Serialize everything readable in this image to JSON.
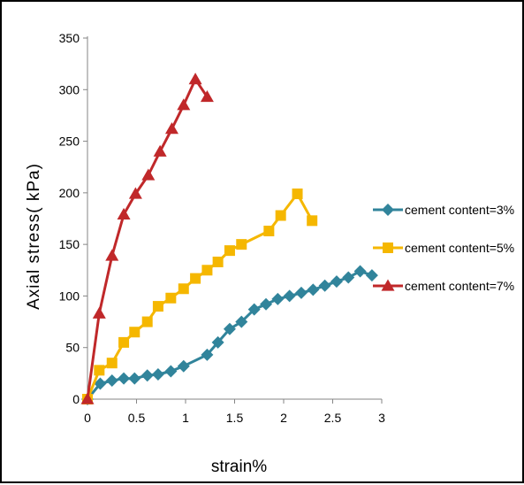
{
  "chart_data": {
    "type": "line",
    "xlabel": "strain%",
    "ylabel": "Axial stress( kPa)",
    "xlim": [
      0,
      3
    ],
    "ylim": [
      0,
      350
    ],
    "xticks": [
      "0",
      "0.5",
      "1",
      "1.5",
      "2",
      "2.5",
      "3"
    ],
    "yticks": [
      "0",
      "50",
      "100",
      "150",
      "200",
      "250",
      "300",
      "350"
    ],
    "grid": false,
    "legend_position": "right",
    "series": [
      {
        "name": "cement content=3%",
        "color": "#31849B",
        "marker": "diamond",
        "x": [
          0,
          0.13,
          0.25,
          0.37,
          0.48,
          0.61,
          0.72,
          0.85,
          0.98,
          1.22,
          1.33,
          1.45,
          1.57,
          1.7,
          1.82,
          1.94,
          2.06,
          2.18,
          2.3,
          2.42,
          2.54,
          2.66,
          2.78,
          2.9
        ],
        "y": [
          0,
          15,
          18,
          20,
          20,
          23,
          24,
          27,
          32,
          43,
          55,
          68,
          75,
          87,
          92,
          97,
          100,
          103,
          106,
          110,
          114,
          118,
          124,
          120
        ]
      },
      {
        "name": "cement content=5%",
        "color": "#F5B700",
        "marker": "square",
        "x": [
          0,
          0.12,
          0.25,
          0.37,
          0.48,
          0.61,
          0.72,
          0.85,
          0.98,
          1.1,
          1.22,
          1.33,
          1.45,
          1.57,
          1.85,
          1.97,
          2.14,
          2.29
        ],
        "y": [
          0,
          28,
          35,
          55,
          65,
          75,
          90,
          98,
          107,
          117,
          125,
          133,
          144,
          150,
          163,
          178,
          199,
          173
        ]
      },
      {
        "name": "cement content=7%",
        "color": "#C0282A",
        "marker": "triangle",
        "x": [
          0,
          0.12,
          0.25,
          0.37,
          0.49,
          0.62,
          0.74,
          0.86,
          0.98,
          1.1,
          1.22
        ],
        "y": [
          0,
          83,
          139,
          179,
          199,
          217,
          240,
          262,
          285,
          310,
          293
        ]
      }
    ]
  }
}
